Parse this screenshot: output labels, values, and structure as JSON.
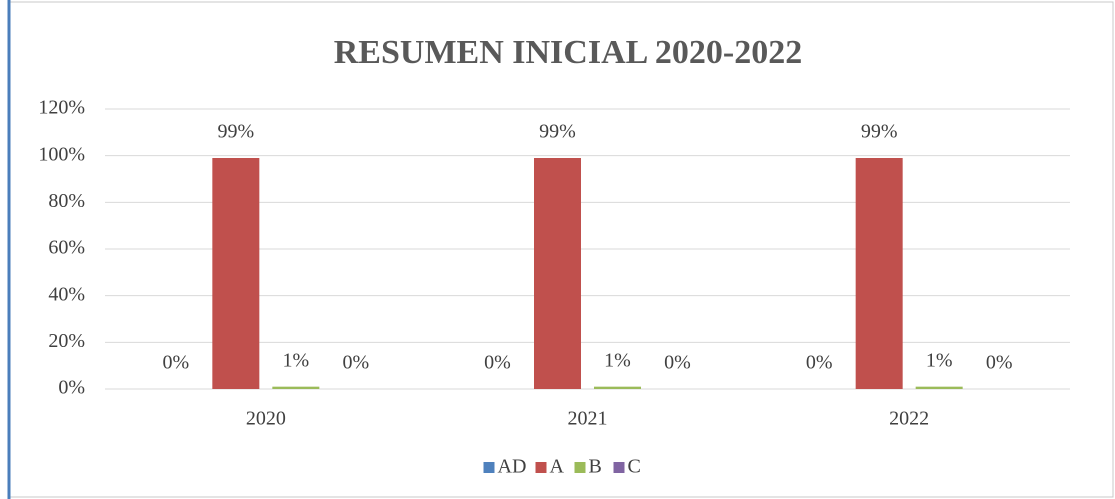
{
  "chart_data": {
    "type": "bar",
    "title": "RESUMEN INICIAL 2020-2022",
    "categories": [
      "2020",
      "2021",
      "2022"
    ],
    "series": [
      {
        "name": "AD",
        "color": "#4f81bd",
        "values": [
          0,
          0,
          0
        ],
        "value_labels": [
          "0%",
          "0%",
          "0%"
        ]
      },
      {
        "name": "A",
        "color": "#c0504d",
        "values": [
          99,
          99,
          99
        ],
        "value_labels": [
          "99%",
          "99%",
          "99%"
        ]
      },
      {
        "name": "B",
        "color": "#9bbb59",
        "values": [
          1,
          1,
          1
        ],
        "value_labels": [
          "1%",
          "1%",
          "1%"
        ]
      },
      {
        "name": "C",
        "color": "#8064a2",
        "values": [
          0,
          0,
          0
        ],
        "value_labels": [
          "0%",
          "0%",
          "0%"
        ]
      }
    ],
    "ylim": [
      0,
      120
    ],
    "yticks": [
      {
        "value": 0,
        "label": "0%"
      },
      {
        "value": 20,
        "label": "20%"
      },
      {
        "value": 40,
        "label": "40%"
      },
      {
        "value": 60,
        "label": "60%"
      },
      {
        "value": 80,
        "label": "80%"
      },
      {
        "value": 100,
        "label": "100%"
      },
      {
        "value": 120,
        "label": "120%"
      }
    ],
    "grid": true,
    "legend": "bottom"
  }
}
